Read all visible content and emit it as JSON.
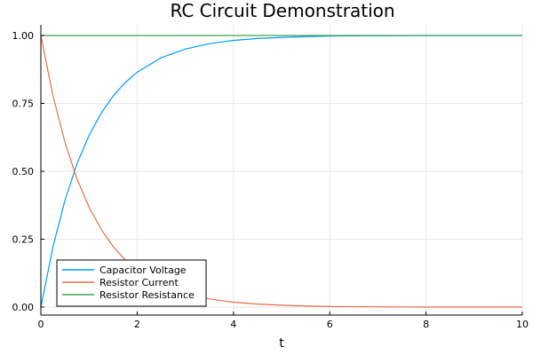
{
  "chart_data": {
    "type": "line",
    "title": "RC Circuit Demonstration",
    "xlabel": "t",
    "ylabel": "",
    "xlim": [
      0,
      10
    ],
    "ylim": [
      0,
      1
    ],
    "x_ticks": [
      0,
      2,
      4,
      6,
      8,
      10
    ],
    "y_ticks": [
      "0.00",
      "0.25",
      "0.50",
      "0.75",
      "1.00"
    ],
    "grid": true,
    "legend_position": "bottom-left",
    "x": [
      0,
      0.25,
      0.5,
      0.75,
      1,
      1.25,
      1.5,
      1.75,
      2,
      2.5,
      3,
      3.5,
      4,
      4.5,
      5,
      5.5,
      6,
      7,
      8,
      9,
      10
    ],
    "series": [
      {
        "name": "Capacitor Voltage",
        "color": "#009AFA",
        "values": [
          0,
          0.221,
          0.393,
          0.528,
          0.632,
          0.713,
          0.777,
          0.826,
          0.865,
          0.918,
          0.95,
          0.97,
          0.982,
          0.989,
          0.993,
          0.996,
          0.998,
          0.999,
          1.0,
          1.0,
          1.0
        ]
      },
      {
        "name": "Resistor Current",
        "color": "#E36F47",
        "values": [
          1,
          0.779,
          0.607,
          0.472,
          0.368,
          0.287,
          0.223,
          0.174,
          0.135,
          0.082,
          0.05,
          0.03,
          0.018,
          0.011,
          0.007,
          0.004,
          0.002,
          0.001,
          0.0,
          0.0,
          0.0
        ]
      },
      {
        "name": "Resistor Resistance",
        "color": "#3EA44E",
        "values": [
          1,
          1,
          1,
          1,
          1,
          1,
          1,
          1,
          1,
          1,
          1,
          1,
          1,
          1,
          1,
          1,
          1,
          1,
          1,
          1,
          1
        ]
      }
    ]
  }
}
